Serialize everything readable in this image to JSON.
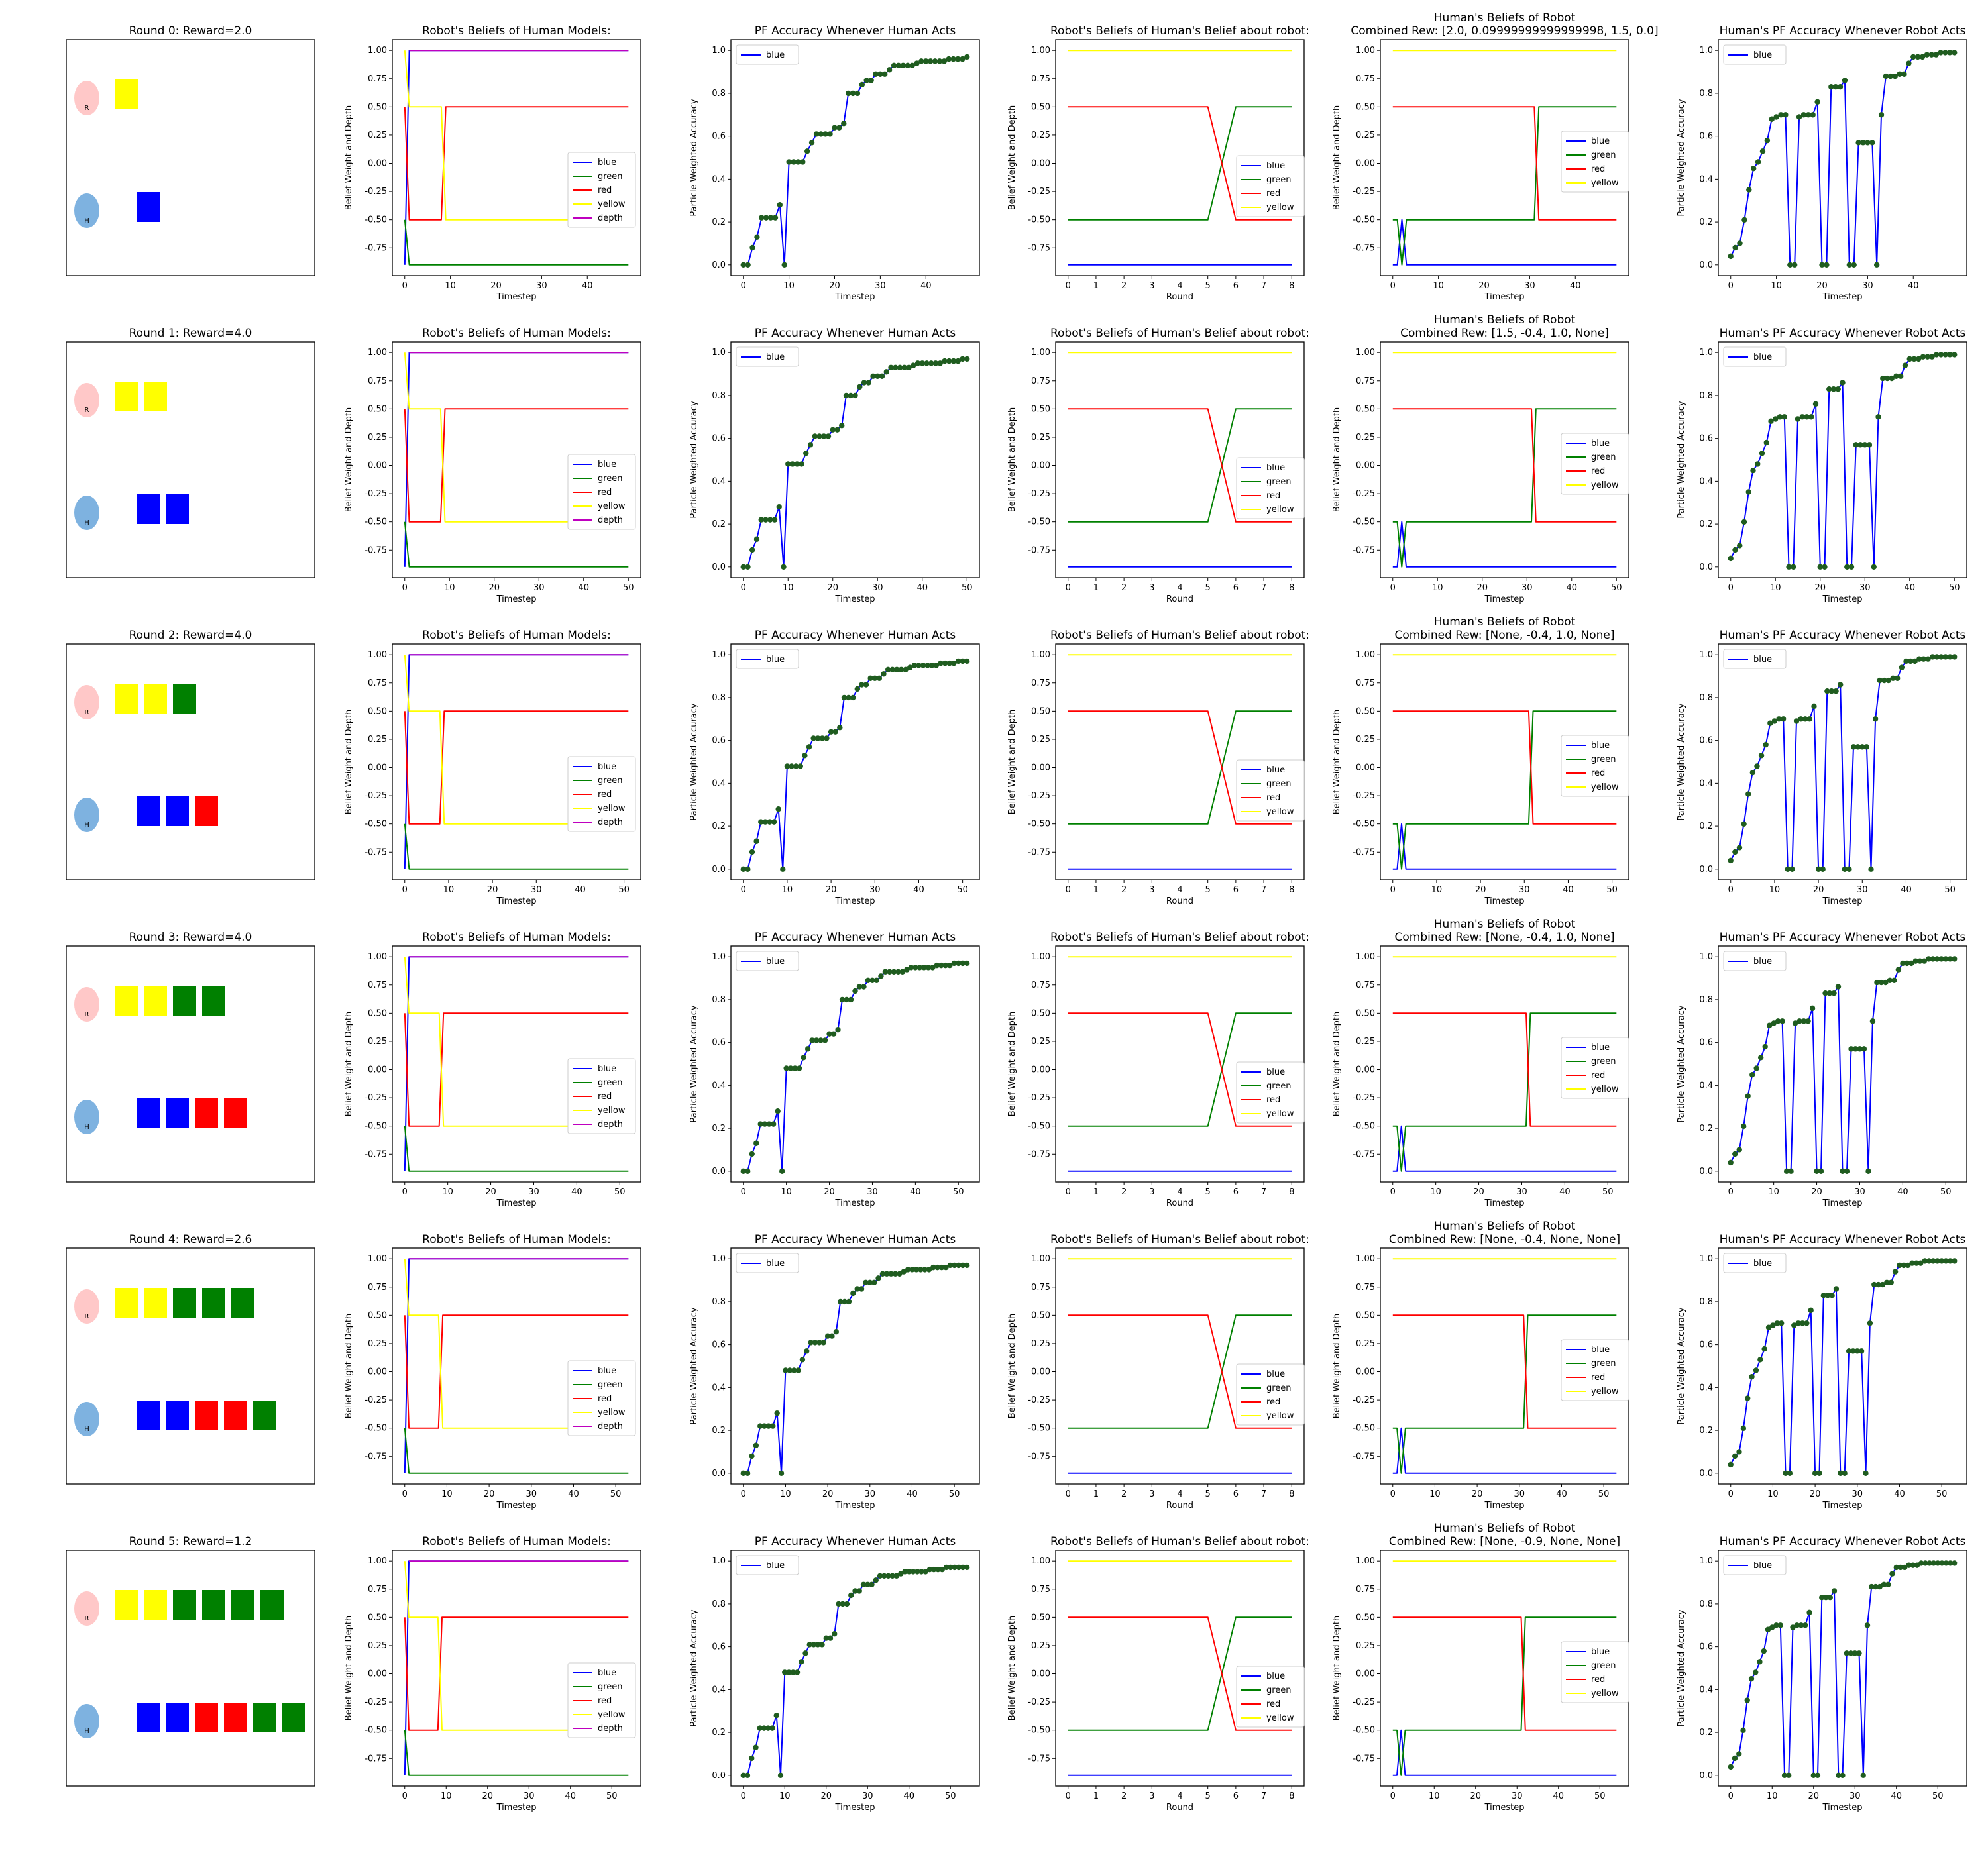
{
  "colors": {
    "blue": "#0000ff",
    "green": "#008000",
    "red": "#ff0000",
    "yellow": "#ffff00",
    "depth": "#bf00bf",
    "dot": "#1f5c1f",
    "robot_circle": "#ffc8c8",
    "human_circle": "#7eb2e0"
  },
  "chart_data": {
    "type": "line",
    "rounds": [
      {
        "title": "Round 0: Reward=2.0",
        "robot_label": "R",
        "human_label": "H",
        "robot_blocks": [
          "yellow"
        ],
        "human_blocks": [
          "blue"
        ],
        "timestep_max": 49,
        "hbr_title_top": "Human's Beliefs of Robot",
        "hbr_title_bottom": "Combined Rew: [2.0, 0.09999999999999998, 1.5, 0.0]",
        "hbr_green_switch": 32
      },
      {
        "title": "Round 1: Reward=4.0",
        "robot_label": "R",
        "human_label": "H",
        "robot_blocks": [
          "yellow",
          "yellow"
        ],
        "human_blocks": [
          "blue",
          "blue"
        ],
        "timestep_max": 50,
        "hbr_title_top": "Human's Beliefs of Robot",
        "hbr_title_bottom": "Combined Rew: [1.5, -0.4, 1.0, None]",
        "hbr_green_switch": 32
      },
      {
        "title": "Round 2: Reward=4.0",
        "robot_label": "R",
        "human_label": "H",
        "robot_blocks": [
          "yellow",
          "yellow",
          "green"
        ],
        "human_blocks": [
          "blue",
          "blue",
          "red"
        ],
        "timestep_max": 51,
        "hbr_title_top": "Human's Beliefs of Robot",
        "hbr_title_bottom": "Combined Rew: [None, -0.4, 1.0, None]",
        "hbr_green_switch": 32
      },
      {
        "title": "Round 3: Reward=4.0",
        "robot_label": "R",
        "human_label": "H",
        "robot_blocks": [
          "yellow",
          "yellow",
          "green",
          "green"
        ],
        "human_blocks": [
          "blue",
          "blue",
          "red",
          "red"
        ],
        "timestep_max": 52,
        "hbr_title_top": "Human's Beliefs of Robot",
        "hbr_title_bottom": "Combined Rew: [None, -0.4, 1.0, None]",
        "hbr_green_switch": 32
      },
      {
        "title": "Round 4: Reward=2.6",
        "robot_label": "R",
        "human_label": "H",
        "robot_blocks": [
          "yellow",
          "yellow",
          "green",
          "green",
          "green"
        ],
        "human_blocks": [
          "blue",
          "blue",
          "red",
          "red",
          "green"
        ],
        "timestep_max": 53,
        "hbr_title_top": "Human's Beliefs of Robot",
        "hbr_title_bottom": "Combined Rew: [None, -0.4, None, None]",
        "hbr_green_switch": 32
      },
      {
        "title": "Round 5: Reward=1.2",
        "robot_label": "R",
        "human_label": "H",
        "robot_blocks": [
          "yellow",
          "yellow",
          "green",
          "green",
          "green",
          "green"
        ],
        "human_blocks": [
          "blue",
          "blue",
          "red",
          "red",
          "green",
          "green"
        ],
        "timestep_max": 54,
        "hbr_title_top": "Human's Beliefs of Robot",
        "hbr_title_bottom": "Combined Rew: [None, -0.9, None, None]",
        "hbr_green_switch": 32
      }
    ],
    "robot_beliefs": {
      "title": "Robot's Beliefs of Human Models:",
      "xlabel": "Timestep",
      "ylabel": "Belief Weight and Depth",
      "yticks": [
        "1.00",
        "0.75",
        "0.50",
        "0.25",
        "0.00",
        "-0.25",
        "-0.50",
        "-0.75"
      ],
      "legend": [
        "blue",
        "green",
        "red",
        "yellow",
        "depth"
      ],
      "series": [
        {
          "name": "blue",
          "values": [
            -0.9,
            1.0
          ],
          "settle_value": 1.0
        },
        {
          "name": "green",
          "values": [
            -0.5,
            -0.9
          ],
          "settle_value": -0.9
        },
        {
          "name": "red",
          "values": [
            0.5,
            -0.5,
            -0.5,
            0.5
          ],
          "switch_timestep": 9
        },
        {
          "name": "yellow",
          "values": [
            1.0,
            0.5,
            0.5,
            -0.5
          ],
          "switch_timestep": 9
        },
        {
          "name": "depth",
          "values": [
            1.0
          ],
          "settle_value": 1.0
        }
      ]
    },
    "pf_accuracy": {
      "title": "PF Accuracy Whenever Human Acts",
      "xlabel": "Timestep",
      "ylabel": "Particle Weighted Accuracy",
      "yticks": [
        "0.0",
        "0.2",
        "0.4",
        "0.6",
        "0.8",
        "1.0"
      ],
      "legend": [
        "blue"
      ],
      "values": [
        0.0,
        0.0,
        0.08,
        0.13,
        0.22,
        0.22,
        0.22,
        0.22,
        0.28,
        0.0,
        0.48,
        0.48,
        0.48,
        0.48,
        0.53,
        0.57,
        0.61,
        0.61,
        0.61,
        0.61,
        0.64,
        0.64,
        0.66,
        0.8,
        0.8,
        0.8,
        0.84,
        0.86,
        0.86,
        0.89,
        0.89,
        0.89,
        0.91,
        0.93,
        0.93,
        0.93,
        0.93,
        0.93,
        0.94,
        0.95,
        0.95,
        0.95,
        0.95,
        0.95,
        0.95,
        0.96,
        0.96,
        0.96,
        0.96,
        0.97,
        0.97,
        0.97,
        0.97,
        0.97,
        0.97
      ]
    },
    "robot_hb": {
      "title": "Robot's Beliefs of Human's Belief about robot:",
      "xlabel": "Round",
      "ylabel": "Belief Weight and Depth",
      "x": [
        0,
        1,
        2,
        3,
        4,
        5,
        6,
        7,
        8
      ],
      "yticks": [
        "1.00",
        "0.75",
        "0.50",
        "0.25",
        "0.00",
        "-0.25",
        "-0.50",
        "-0.75"
      ],
      "legend": [
        "blue",
        "green",
        "red",
        "yellow"
      ],
      "series": [
        {
          "name": "blue",
          "values": [
            -0.9,
            -0.9,
            -0.9,
            -0.9,
            -0.9,
            -0.9,
            -0.9,
            -0.9,
            -0.9
          ]
        },
        {
          "name": "green",
          "values": [
            -0.5,
            -0.5,
            -0.5,
            -0.5,
            -0.5,
            -0.5,
            0.5,
            0.5,
            0.5
          ]
        },
        {
          "name": "red",
          "values": [
            0.5,
            0.5,
            0.5,
            0.5,
            0.5,
            0.5,
            -0.5,
            -0.5,
            -0.5
          ]
        },
        {
          "name": "yellow",
          "values": [
            1.0,
            1.0,
            1.0,
            1.0,
            1.0,
            1.0,
            1.0,
            1.0,
            1.0
          ]
        }
      ]
    },
    "human_beliefs": {
      "xlabel": "Timestep",
      "ylabel": "Belief Weight and Depth",
      "yticks": [
        "1.00",
        "0.75",
        "0.50",
        "0.25",
        "0.00",
        "-0.25",
        "-0.50",
        "-0.75"
      ],
      "legend": [
        "blue",
        "green",
        "red",
        "yellow"
      ],
      "series": [
        {
          "name": "blue",
          "values": [
            -0.9,
            -0.9,
            -0.5,
            -0.9
          ]
        },
        {
          "name": "green",
          "values": [
            -0.5,
            -0.5,
            -0.9,
            -0.5,
            -0.5,
            0.5
          ]
        },
        {
          "name": "red",
          "values": [
            0.5,
            0.5,
            -0.5
          ]
        },
        {
          "name": "yellow",
          "values": [
            1.0,
            1.0
          ]
        }
      ]
    },
    "human_pf": {
      "title": "Human's PF Accuracy Whenever Robot Acts",
      "xlabel": "Timestep",
      "ylabel": "Particle Weighted Accuracy",
      "yticks": [
        "0.0",
        "0.2",
        "0.4",
        "0.6",
        "0.8",
        "1.0"
      ],
      "legend": [
        "blue"
      ],
      "values": [
        0.04,
        0.08,
        0.1,
        0.21,
        0.35,
        0.45,
        0.48,
        0.53,
        0.58,
        0.68,
        0.69,
        0.7,
        0.7,
        0.0,
        0.0,
        0.69,
        0.7,
        0.7,
        0.7,
        0.76,
        0.0,
        0.0,
        0.83,
        0.83,
        0.83,
        0.86,
        0.0,
        0.0,
        0.57,
        0.57,
        0.57,
        0.57,
        0.0,
        0.7,
        0.88,
        0.88,
        0.88,
        0.89,
        0.89,
        0.94,
        0.97,
        0.97,
        0.97,
        0.98,
        0.98,
        0.98,
        0.99,
        0.99,
        0.99,
        0.99,
        0.99,
        0.99,
        0.99,
        0.99,
        0.99
      ]
    }
  }
}
